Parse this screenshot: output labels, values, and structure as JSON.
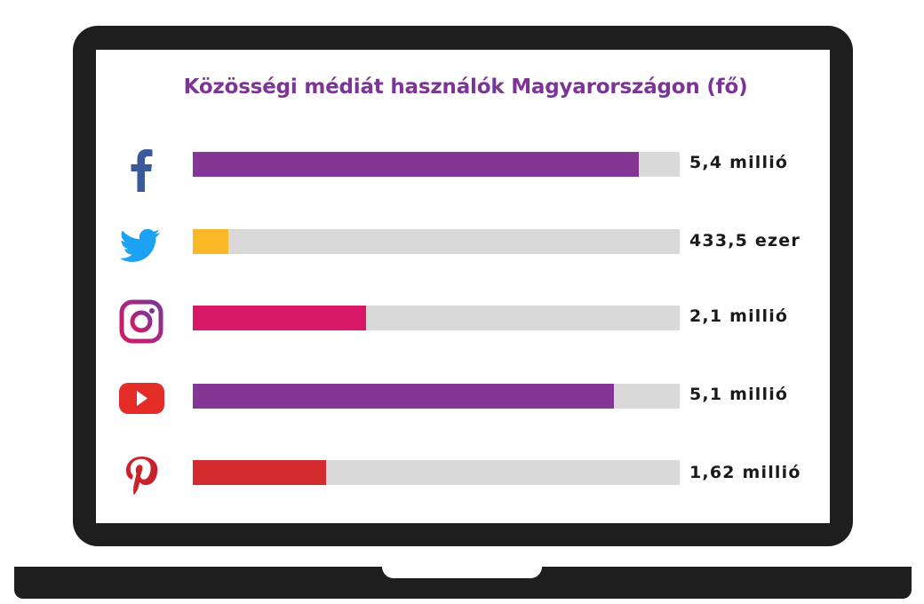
{
  "chart_data": {
    "type": "bar",
    "orientation": "horizontal",
    "title": "Közösségi médiát használók Magyarországon (fő)",
    "xlim": [
      0,
      5.9
    ],
    "unit": "millió",
    "categories": [
      "Facebook",
      "Twitter",
      "Instagram",
      "YouTube",
      "Pinterest"
    ],
    "values": [
      5.4,
      0.4335,
      2.1,
      5.1,
      1.62
    ],
    "value_labels": [
      "5,4 millió",
      "433,5 ezer",
      "2,1 millió",
      "5,1 millió",
      "1,62 millió"
    ],
    "bar_colors": [
      "#843696",
      "#fbb827",
      "#d81866",
      "#843696",
      "#d42b2e"
    ],
    "track_color": "#d9d9d9",
    "icons": [
      "facebook-icon",
      "twitter-icon",
      "instagram-icon",
      "youtube-icon",
      "pinterest-icon"
    ]
  }
}
